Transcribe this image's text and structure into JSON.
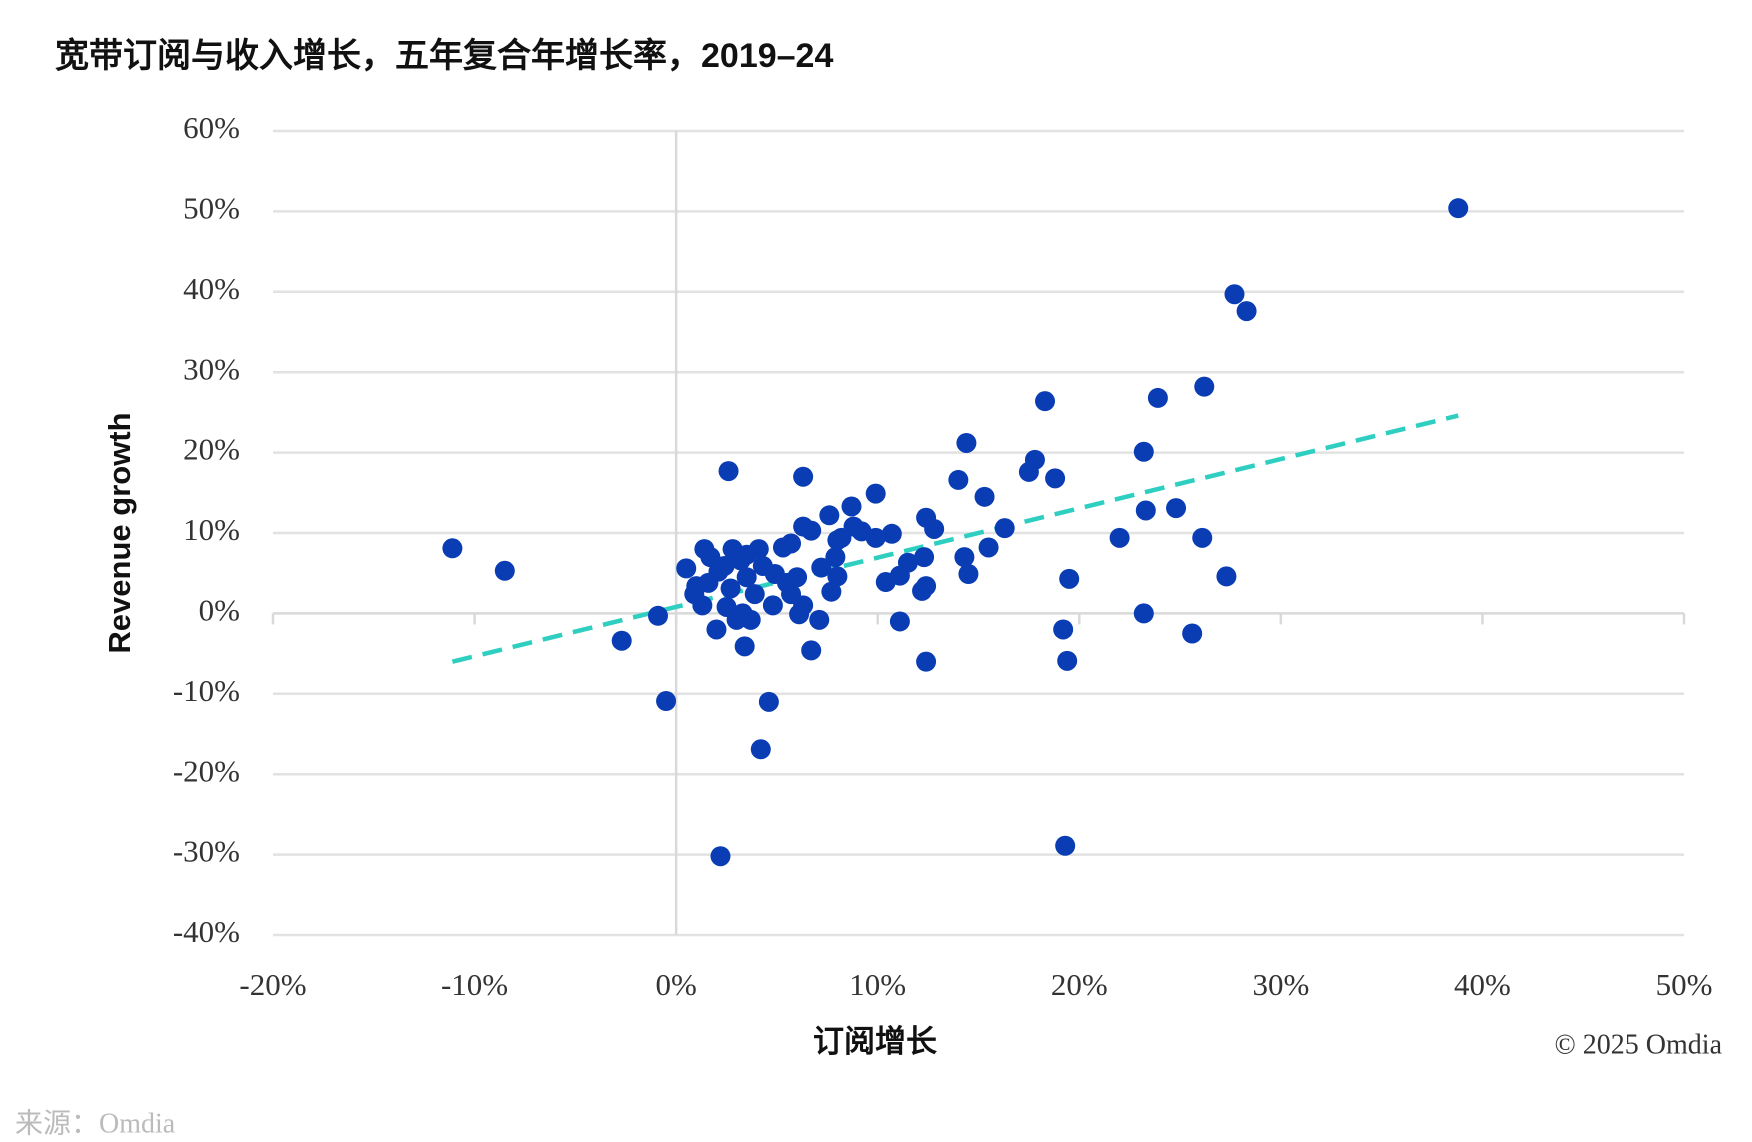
{
  "chart_data": {
    "type": "scatter",
    "title": "宽带订阅与收入增长，五年复合年增长率，2019–24",
    "x_label": "订阅增长",
    "y_label": "Revenue growth",
    "copyright": "© 2025 Omdia",
    "source": "来源：Omdia",
    "xlim": [
      -20,
      50
    ],
    "ylim": [
      -40,
      60
    ],
    "xticks": [
      {
        "value": -20,
        "label": "-20%"
      },
      {
        "value": -10,
        "label": "-10%"
      },
      {
        "value": 0,
        "label": "0%"
      },
      {
        "value": 10,
        "label": "10%"
      },
      {
        "value": 20,
        "label": "20%"
      },
      {
        "value": 30,
        "label": "30%"
      },
      {
        "value": 40,
        "label": "40%"
      },
      {
        "value": 50,
        "label": "50%"
      }
    ],
    "yticks": [
      {
        "value": -40,
        "label": "-40%"
      },
      {
        "value": -30,
        "label": "-30%"
      },
      {
        "value": -20,
        "label": "-20%"
      },
      {
        "value": -10,
        "label": "-10%"
      },
      {
        "value": 0,
        "label": "0%"
      },
      {
        "value": 10,
        "label": "10%"
      },
      {
        "value": 20,
        "label": "20%"
      },
      {
        "value": 30,
        "label": "30%"
      },
      {
        "value": 40,
        "label": "40%"
      },
      {
        "value": 50,
        "label": "50%"
      },
      {
        "value": 60,
        "label": "60%"
      }
    ],
    "grid": true,
    "color": "#0a3db4",
    "trendline_color": "#2ecfc0",
    "x": [
      -11.1,
      -8.5,
      -2.7,
      -0.9,
      -0.5,
      2.2,
      2.6,
      0.5,
      6.3,
      6.3,
      6.7,
      7.6,
      8.7,
      9.9,
      9.2,
      10.7,
      12.4,
      12.8,
      14.0,
      14.4,
      15.3,
      16.3,
      15.5,
      14.3,
      14.5,
      17.5,
      17.8,
      18.8,
      18.3,
      19.5,
      19.2,
      19.4,
      19.3,
      22.0,
      23.2,
      23.3,
      23.9,
      24.8,
      23.2,
      25.6,
      26.2,
      26.1,
      27.3,
      27.7,
      28.3,
      38.8,
      12.4,
      11.1,
      10.4,
      11.1,
      12.2,
      12.4,
      12.3,
      11.5,
      7.7,
      8.0,
      7.9,
      8.0,
      7.2,
      7.1,
      6.7,
      6.1,
      5.7,
      5.3,
      4.6,
      4.2,
      3.4,
      3.7,
      3.3,
      3.0,
      2.0,
      2.5,
      1.4,
      1.7,
      2.8,
      1.3,
      1.0,
      0.9,
      1.6,
      2.1,
      3.2,
      4.1,
      3.5,
      4.3,
      4.9,
      5.5,
      6.0,
      4.8,
      3.9,
      2.7,
      6.3,
      5.7,
      9.9,
      8.8,
      8.2,
      3.5,
      2.4
    ],
    "values": [
      8.1,
      5.3,
      -3.4,
      -0.3,
      -10.9,
      -30.2,
      17.7,
      5.6,
      17.0,
      10.8,
      10.3,
      12.2,
      13.3,
      14.9,
      10.2,
      9.9,
      11.9,
      10.5,
      16.6,
      21.2,
      14.5,
      10.6,
      8.2,
      7.0,
      4.9,
      17.6,
      19.1,
      16.8,
      26.4,
      4.3,
      -2.0,
      -5.9,
      -28.9,
      9.4,
      20.1,
      12.8,
      26.8,
      13.1,
      0.0,
      -2.5,
      28.2,
      9.4,
      4.6,
      39.7,
      37.6,
      50.4,
      -6.0,
      -1.0,
      3.9,
      4.7,
      2.8,
      3.4,
      7.0,
      6.3,
      2.7,
      4.6,
      7.0,
      9.1,
      5.7,
      -0.8,
      -4.6,
      -0.1,
      8.7,
      8.2,
      -11.0,
      -16.9,
      -4.1,
      -0.8,
      0.0,
      -0.8,
      -2.0,
      0.8,
      8.0,
      7.0,
      8.0,
      1.0,
      3.4,
      2.4,
      3.8,
      5.2,
      6.6,
      8.0,
      4.5,
      5.9,
      4.9,
      3.8,
      4.5,
      1.0,
      2.4,
      3.1,
      1.0,
      2.4,
      9.4,
      10.8,
      9.4,
      7.3,
      5.9
    ],
    "trendline": {
      "x": [
        -11.1,
        38.8
      ],
      "y": [
        -6.0,
        24.6
      ]
    }
  }
}
